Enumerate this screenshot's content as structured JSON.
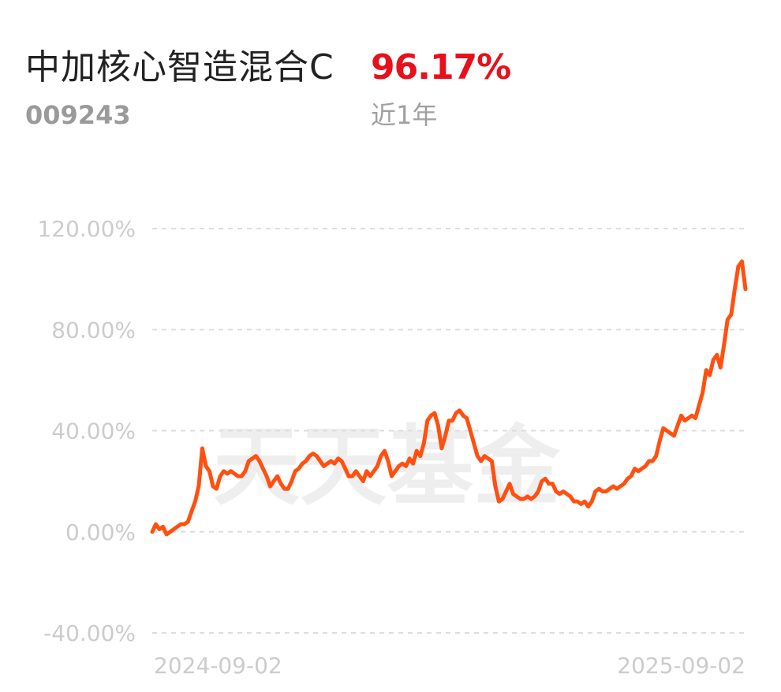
{
  "fund": {
    "name": "中加核心智造混合C",
    "code": "009243",
    "return_value": "96.17%",
    "period": "近1年"
  },
  "watermark": "天天基金",
  "colors": {
    "line": "#ff5010",
    "return": "#e8101a",
    "grid": "#dddddd",
    "tick": "#cccccc"
  },
  "chart_data": {
    "type": "line",
    "title": "",
    "xlabel": "",
    "ylabel": "",
    "x_ticks": [
      "2024-09-02",
      "2025-09-02"
    ],
    "y_ticks": [
      "120.00%",
      "80.00%",
      "40.00%",
      "0.00%",
      "-40.00%"
    ],
    "ylim": [
      -40,
      120
    ],
    "grid": true,
    "legend": "none",
    "series": [
      {
        "values": [
          0,
          3,
          1,
          2,
          -1,
          0,
          1,
          2,
          3,
          3,
          4,
          8,
          12,
          18,
          33,
          26,
          24,
          18,
          17,
          22,
          24,
          23,
          24,
          23,
          22,
          22,
          24,
          28,
          29,
          30,
          28,
          25,
          22,
          18,
          20,
          22,
          19,
          17,
          17,
          20,
          24,
          25,
          27,
          28,
          30,
          31,
          30,
          28,
          26,
          27,
          28,
          27,
          29,
          28,
          25,
          22,
          22,
          24,
          22,
          20,
          24,
          22,
          24,
          26,
          30,
          32,
          28,
          22,
          24,
          26,
          27,
          26,
          29,
          27,
          32,
          30,
          35,
          44,
          46,
          47,
          42,
          33,
          38,
          44,
          44,
          47,
          48,
          46,
          45,
          40,
          35,
          30,
          28,
          30,
          29,
          28,
          18,
          12,
          13,
          16,
          19,
          15,
          14,
          13,
          13,
          14,
          13,
          14,
          16,
          20,
          21,
          19,
          19,
          16,
          15,
          16,
          15,
          14,
          12,
          12,
          11,
          12,
          10,
          12,
          16,
          17,
          16,
          16,
          17,
          18,
          17,
          18,
          19,
          21,
          22,
          25,
          24,
          25,
          26,
          28,
          28,
          30,
          36,
          41,
          40,
          39,
          38,
          42,
          46,
          44,
          45,
          46,
          45,
          50,
          55,
          64,
          62,
          68,
          70,
          65,
          74,
          84,
          86,
          96,
          105,
          107,
          96
        ]
      }
    ]
  }
}
